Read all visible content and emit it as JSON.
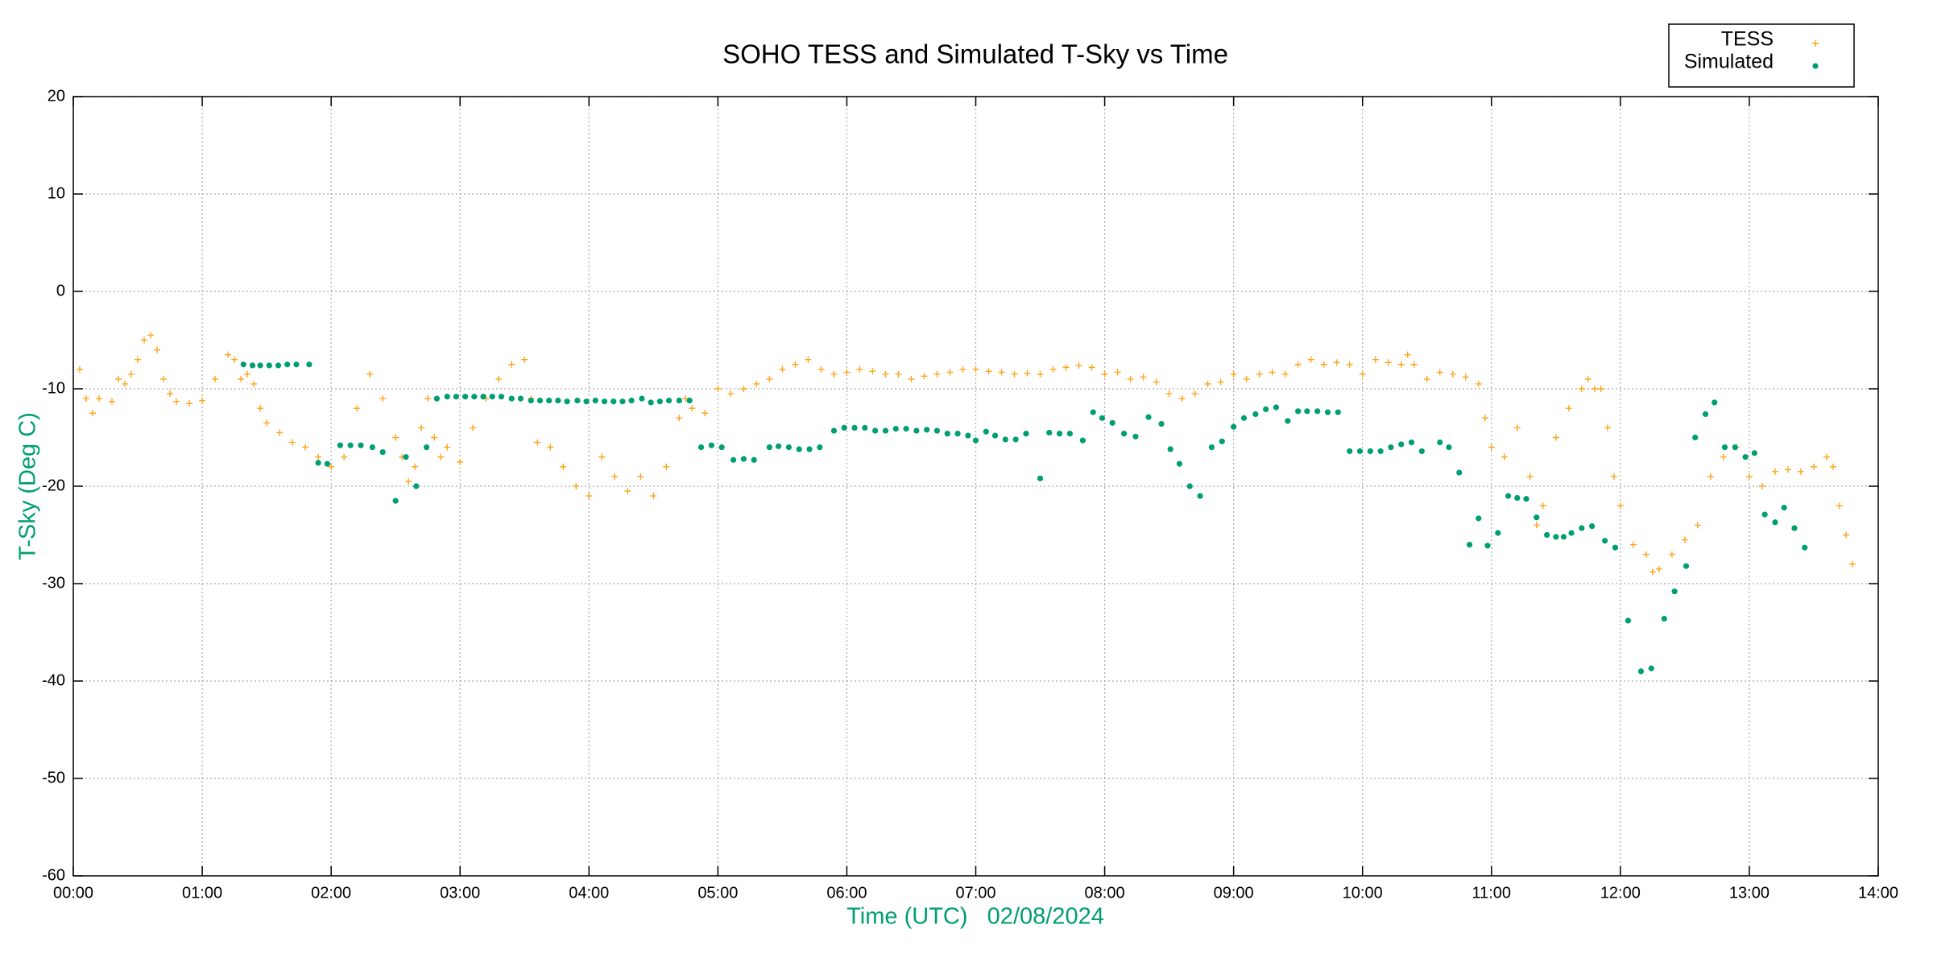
{
  "chart_data": {
    "type": "scatter",
    "title": "SOHO TESS and Simulated T-Sky vs Time",
    "x_label": "Time (UTC)   02/08/2024",
    "y_label": "T-Sky (Deg C)",
    "xlim": [
      0,
      14
    ],
    "ylim": [
      -60,
      20
    ],
    "xticks": [
      {
        "value": 0,
        "label": "00:00"
      },
      {
        "value": 1,
        "label": "01:00"
      },
      {
        "value": 2,
        "label": "02:00"
      },
      {
        "value": 3,
        "label": "03:00"
      },
      {
        "value": 4,
        "label": "04:00"
      },
      {
        "value": 5,
        "label": "05:00"
      },
      {
        "value": 6,
        "label": "06:00"
      },
      {
        "value": 7,
        "label": "07:00"
      },
      {
        "value": 8,
        "label": "08:00"
      },
      {
        "value": 9,
        "label": "09:00"
      },
      {
        "value": 10,
        "label": "10:00"
      },
      {
        "value": 11,
        "label": "11:00"
      },
      {
        "value": 12,
        "label": "12:00"
      },
      {
        "value": 13,
        "label": "13:00"
      },
      {
        "value": 14,
        "label": "14:00"
      }
    ],
    "yticks": [
      -60,
      -50,
      -40,
      -30,
      -20,
      -10,
      0,
      10,
      20
    ],
    "grid": true,
    "legend": "top-right",
    "series": [
      {
        "name": "TESS",
        "color": "#ffa31a",
        "marker": "plus",
        "x": [
          0.05,
          0.1,
          0.15,
          0.2,
          0.3,
          0.35,
          0.4,
          0.45,
          0.5,
          0.55,
          0.6,
          0.65,
          0.7,
          0.75,
          0.8,
          0.9,
          1.0,
          1.1,
          1.2,
          1.25,
          1.3,
          1.35,
          1.4,
          1.45,
          1.5,
          1.6,
          1.7,
          1.8,
          1.9,
          2.0,
          2.1,
          2.2,
          2.3,
          2.4,
          2.5,
          2.55,
          2.6,
          2.65,
          2.7,
          2.75,
          2.8,
          2.85,
          2.9,
          3.0,
          3.1,
          3.2,
          3.3,
          3.4,
          3.5,
          3.55,
          3.6,
          3.7,
          3.8,
          3.9,
          4.0,
          4.1,
          4.2,
          4.3,
          4.4,
          4.5,
          4.6,
          4.7,
          4.75,
          4.8,
          4.9,
          5.0,
          5.1,
          5.2,
          5.3,
          5.4,
          5.5,
          5.6,
          5.7,
          5.8,
          5.9,
          6.0,
          6.1,
          6.2,
          6.3,
          6.4,
          6.5,
          6.6,
          6.7,
          6.8,
          6.9,
          7.0,
          7.1,
          7.2,
          7.3,
          7.4,
          7.5,
          7.6,
          7.7,
          7.8,
          7.9,
          8.0,
          8.1,
          8.2,
          8.3,
          8.4,
          8.5,
          8.6,
          8.7,
          8.8,
          8.9,
          9.0,
          9.1,
          9.2,
          9.3,
          9.4,
          9.5,
          9.6,
          9.7,
          9.8,
          9.9,
          10.0,
          10.1,
          10.2,
          10.3,
          10.35,
          10.4,
          10.5,
          10.6,
          10.7,
          10.8,
          10.9,
          10.95,
          11.0,
          11.1,
          11.2,
          11.3,
          11.35,
          11.4,
          11.5,
          11.6,
          11.7,
          11.75,
          11.8,
          11.85,
          11.9,
          11.95,
          12.0,
          12.1,
          12.2,
          12.25,
          12.3,
          12.4,
          12.5,
          12.6,
          12.7,
          12.8,
          12.9,
          13.0,
          13.1,
          13.2,
          13.3,
          13.4,
          13.5,
          13.6,
          13.65,
          13.7,
          13.75,
          13.8
        ],
        "values": [
          -8,
          -11,
          -12.5,
          -11,
          -11.3,
          -9,
          -9.5,
          -8.5,
          -7,
          -5,
          -4.5,
          -6,
          -9,
          -10.5,
          -11.3,
          -11.5,
          -11.2,
          -9,
          -6.5,
          -7,
          -9,
          -8.5,
          -9.5,
          -12,
          -13.5,
          -14.5,
          -15.5,
          -16,
          -17,
          -18,
          -17,
          -12,
          -8.5,
          -11,
          -15,
          -17,
          -19.5,
          -18,
          -14,
          -11,
          -15,
          -17,
          -16,
          -17.5,
          -14,
          -11,
          -9,
          -7.5,
          -7,
          -11,
          -15.5,
          -16,
          -18,
          -20,
          -21,
          -17,
          -19,
          -20.5,
          -19,
          -21,
          -18,
          -13,
          -11,
          -12,
          -12.5,
          -10,
          -10.5,
          -10,
          -9.5,
          -9,
          -8,
          -7.5,
          -7,
          -8,
          -8.5,
          -8.3,
          -8,
          -8.2,
          -8.5,
          -8.5,
          -9,
          -8.7,
          -8.5,
          -8.3,
          -8,
          -8,
          -8.2,
          -8.3,
          -8.5,
          -8.4,
          -8.5,
          -8,
          -7.8,
          -7.6,
          -7.8,
          -8.5,
          -8.3,
          -9,
          -8.8,
          -9.3,
          -10.5,
          -11,
          -10.5,
          -9.5,
          -9.3,
          -8.5,
          -9,
          -8.5,
          -8.3,
          -8.5,
          -7.5,
          -7,
          -7.5,
          -7.3,
          -7.5,
          -8.5,
          -7,
          -7.3,
          -7.5,
          -6.5,
          -7.5,
          -9,
          -8.3,
          -8.5,
          -8.8,
          -9.5,
          -13,
          -16,
          -17,
          -14,
          -19,
          -24,
          -22,
          -15,
          -12,
          -10,
          -9,
          -10,
          -10,
          -14,
          -19,
          -22,
          -26,
          -27,
          -28.8,
          -28.5,
          -27,
          -25.5,
          -24,
          -19,
          -17,
          -16,
          -19,
          -20,
          -18.5,
          -18.3,
          -18.5,
          -18,
          -17,
          -18,
          -22,
          -25,
          -28
        ]
      },
      {
        "name": "Simulated",
        "color": "#009e73",
        "marker": "dot",
        "x": [
          1.32,
          1.39,
          1.45,
          1.52,
          1.59,
          1.66,
          1.73,
          1.83,
          1.9,
          1.97,
          2.07,
          2.15,
          2.23,
          2.32,
          2.4,
          2.5,
          2.58,
          2.66,
          2.74,
          2.82,
          2.9,
          2.97,
          3.04,
          3.11,
          3.18,
          3.25,
          3.32,
          3.4,
          3.47,
          3.55,
          3.62,
          3.69,
          3.76,
          3.83,
          3.91,
          3.98,
          4.05,
          4.12,
          4.19,
          4.26,
          4.33,
          4.41,
          4.48,
          4.55,
          4.62,
          4.7,
          4.78,
          4.87,
          4.95,
          5.03,
          5.12,
          5.2,
          5.28,
          5.4,
          5.47,
          5.55,
          5.63,
          5.71,
          5.79,
          5.9,
          5.98,
          6.06,
          6.14,
          6.22,
          6.3,
          6.38,
          6.46,
          6.54,
          6.62,
          6.7,
          6.78,
          6.86,
          6.94,
          7.0,
          7.08,
          7.15,
          7.23,
          7.31,
          7.39,
          7.5,
          7.57,
          7.65,
          7.73,
          7.83,
          7.91,
          7.98,
          8.06,
          8.15,
          8.24,
          8.34,
          8.44,
          8.51,
          8.58,
          8.66,
          8.74,
          8.83,
          8.91,
          9.0,
          9.08,
          9.17,
          9.25,
          9.33,
          9.42,
          9.5,
          9.57,
          9.65,
          9.73,
          9.81,
          9.9,
          9.98,
          10.06,
          10.14,
          10.22,
          10.3,
          10.38,
          10.46,
          10.6,
          10.67,
          10.75,
          10.83,
          10.9,
          10.97,
          11.05,
          11.13,
          11.2,
          11.27,
          11.35,
          11.43,
          11.5,
          11.56,
          11.62,
          11.7,
          11.78,
          11.88,
          11.96,
          12.06,
          12.16,
          12.24,
          12.34,
          12.42,
          12.51,
          12.58,
          12.66,
          12.73,
          12.81,
          12.89,
          12.97,
          13.04,
          13.12,
          13.2,
          13.27,
          13.35,
          13.43
        ],
        "values": [
          -7.5,
          -7.6,
          -7.6,
          -7.6,
          -7.6,
          -7.5,
          -7.5,
          -7.5,
          -17.6,
          -17.7,
          -15.8,
          -15.8,
          -15.8,
          -16,
          -16.5,
          -21.5,
          -17,
          -20,
          -16,
          -11,
          -10.8,
          -10.8,
          -10.8,
          -10.8,
          -10.8,
          -10.8,
          -10.8,
          -11,
          -11,
          -11.2,
          -11.2,
          -11.2,
          -11.2,
          -11.3,
          -11.2,
          -11.3,
          -11.2,
          -11.3,
          -11.3,
          -11.3,
          -11.2,
          -11,
          -11.4,
          -11.3,
          -11.2,
          -11.2,
          -11.2,
          -16,
          -15.8,
          -16,
          -17.3,
          -17.2,
          -17.3,
          -16,
          -15.9,
          -16,
          -16.2,
          -16.2,
          -16,
          -14.3,
          -14,
          -14,
          -14,
          -14.3,
          -14.3,
          -14.1,
          -14.1,
          -14.3,
          -14.2,
          -14.3,
          -14.6,
          -14.6,
          -14.8,
          -15.3,
          -14.4,
          -14.8,
          -15.2,
          -15.2,
          -14.6,
          -19.2,
          -14.5,
          -14.6,
          -14.6,
          -15.3,
          -12.4,
          -13,
          -13.5,
          -14.6,
          -14.9,
          -12.9,
          -13.6,
          -16.2,
          -17.7,
          -20,
          -21,
          -16,
          -15.4,
          -13.9,
          -13,
          -12.6,
          -12.1,
          -11.9,
          -13.3,
          -12.3,
          -12.3,
          -12.3,
          -12.4,
          -12.4,
          -16.4,
          -16.4,
          -16.4,
          -16.4,
          -16,
          -15.7,
          -15.5,
          -16.4,
          -15.5,
          -16,
          -18.6,
          -26,
          -23.3,
          -26.1,
          -24.8,
          -21,
          -21.2,
          -21.3,
          -23.2,
          -25,
          -25.2,
          -25.2,
          -24.8,
          -24.3,
          -24.1,
          -25.6,
          -26.3,
          -33.8,
          -39,
          -38.7,
          -33.6,
          -30.8,
          -28.2,
          -15,
          -12.6,
          -11.4,
          -16,
          -16,
          -17,
          -16.6,
          -22.9,
          -23.7,
          -22.2,
          -24.3,
          -26.3
        ]
      }
    ]
  }
}
